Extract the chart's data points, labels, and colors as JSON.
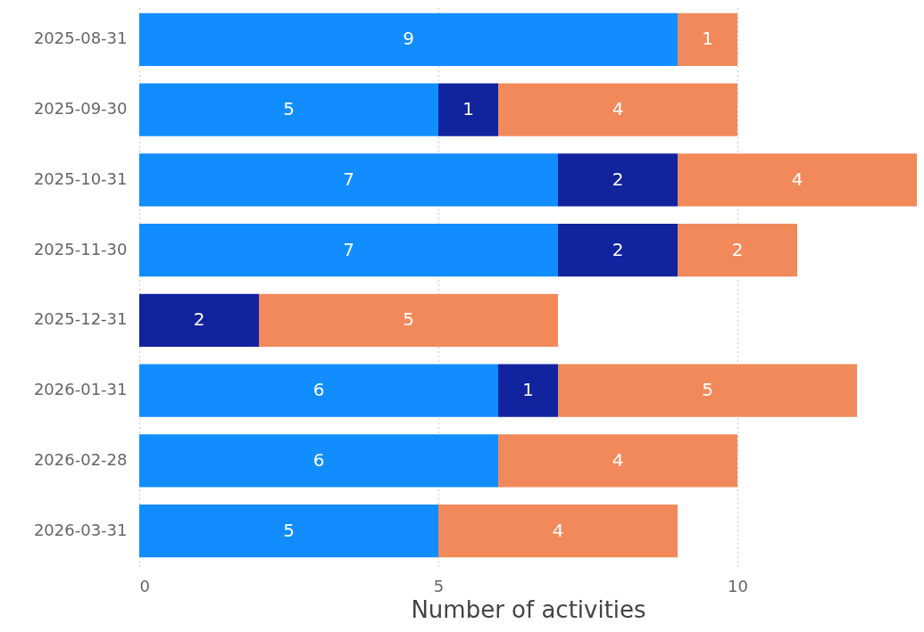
{
  "chart_data": {
    "type": "bar",
    "orientation": "horizontal",
    "stacked": true,
    "xlabel": "Number of activities",
    "categories": [
      "2025-08-31",
      "2025-09-30",
      "2025-10-31",
      "2025-11-30",
      "2025-12-31",
      "2026-01-31",
      "2026-02-28",
      "2026-03-31"
    ],
    "series": [
      {
        "color": "#118dff",
        "values": [
          9,
          5,
          7,
          7,
          null,
          6,
          6,
          5
        ]
      },
      {
        "color": "#12239e",
        "values": [
          null,
          1,
          2,
          2,
          2,
          1,
          null,
          null
        ]
      },
      {
        "color": "#f2895b",
        "values": [
          1,
          4,
          4,
          2,
          5,
          5,
          4,
          4
        ]
      }
    ],
    "xlim": [
      0,
      13
    ],
    "xticks": [
      0,
      5,
      10
    ],
    "grid": "x",
    "data_labels": true
  }
}
